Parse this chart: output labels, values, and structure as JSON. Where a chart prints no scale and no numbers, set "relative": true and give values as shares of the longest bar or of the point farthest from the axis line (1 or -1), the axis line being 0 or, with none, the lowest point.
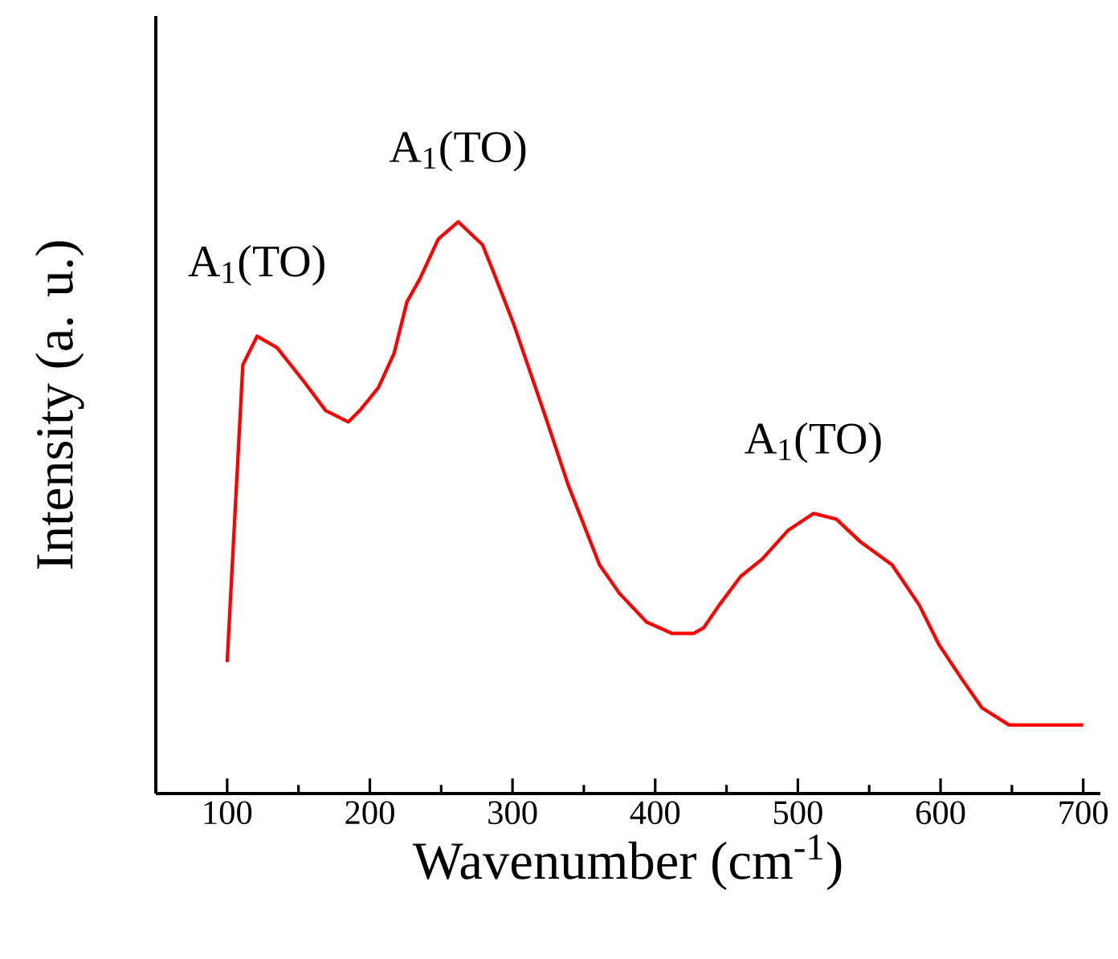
{
  "chart_data": {
    "type": "line",
    "relative": true,
    "xlabel": "Wavenumber (cm$^{-1}$)",
    "ylabel": "Intensity (a. u.)",
    "xlim": [
      50,
      712
    ],
    "xticks": [
      100,
      200,
      300,
      400,
      500,
      600,
      700
    ],
    "x": [
      100,
      111,
      121,
      135,
      154,
      169,
      185,
      193,
      206,
      217,
      226,
      235,
      248,
      262,
      279,
      287,
      301,
      312,
      323,
      339,
      350,
      361,
      375,
      394,
      412,
      427,
      434,
      445,
      460,
      475,
      493,
      511,
      527,
      544,
      566,
      585,
      599,
      615,
      629,
      648,
      659,
      670,
      700
    ],
    "series": [
      {
        "color": "#ff0000",
        "values": [
          0.23,
          0.75,
          0.8,
          0.78,
          0.72,
          0.67,
          0.65,
          0.67,
          0.71,
          0.77,
          0.86,
          0.9,
          0.97,
          1.0,
          0.96,
          0.91,
          0.82,
          0.74,
          0.66,
          0.54,
          0.47,
          0.4,
          0.35,
          0.3,
          0.28,
          0.28,
          0.29,
          0.33,
          0.38,
          0.41,
          0.46,
          0.49,
          0.48,
          0.44,
          0.4,
          0.33,
          0.26,
          0.2,
          0.15,
          0.12,
          0.12,
          0.12,
          0.12
        ]
      }
    ],
    "annotations": [
      {
        "text": "A$_{1}$(TO)",
        "x": 121,
        "y": 0.8
      },
      {
        "text": "A$_{1}$(TO)",
        "x": 262,
        "y": 1.0
      },
      {
        "text": "A$_{1}$(TO)",
        "x": 511,
        "y": 0.49
      }
    ],
    "grid": false,
    "marker": "none",
    "line_style": "solid"
  }
}
